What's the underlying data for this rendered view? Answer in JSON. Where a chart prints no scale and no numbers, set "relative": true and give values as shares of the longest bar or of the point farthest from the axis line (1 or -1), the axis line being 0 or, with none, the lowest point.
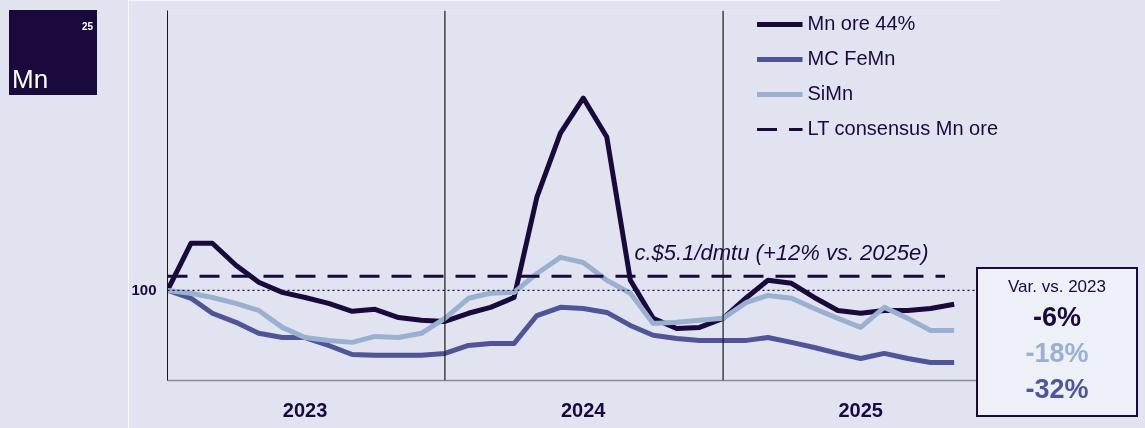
{
  "chart_data": {
    "type": "line",
    "relative": true,
    "x": [
      "2023-01",
      "2023-02",
      "2023-03",
      "2023-04",
      "2023-05",
      "2023-06",
      "2023-07",
      "2023-08",
      "2023-09",
      "2023-10",
      "2023-11",
      "2023-12",
      "2024-01",
      "2024-02",
      "2024-03",
      "2024-04",
      "2024-05",
      "2024-06",
      "2024-07",
      "2024-08",
      "2024-09",
      "2024-10",
      "2024-11",
      "2024-12",
      "2025-01",
      "2025-02",
      "2025-03",
      "2025-04",
      "2025-05",
      "2025-06",
      "2025-07",
      "2025-08",
      "2025-09",
      "2025-10",
      "2025-11"
    ],
    "xlim": [
      "2023-01",
      "2026-01"
    ],
    "xticks": [
      {
        "value": "2023-07",
        "label": "2023"
      },
      {
        "value": "2024-07",
        "label": "2024"
      },
      {
        "value": "2025-07",
        "label": "2025"
      }
    ],
    "series": [
      {
        "name": "Mn ore 44%",
        "color": "#1a0a3c",
        "values": [
          0.319,
          0.486,
          0.486,
          0.408,
          0.348,
          0.312,
          0.294,
          0.273,
          0.245,
          0.252,
          0.223,
          0.213,
          0.209,
          0.238,
          0.259,
          0.294,
          0.649,
          0.876,
          1.0,
          0.862,
          0.355,
          0.22,
          0.184,
          0.188,
          0.22,
          0.294,
          0.355,
          0.344,
          0.294,
          0.248,
          0.238,
          0.248,
          0.248,
          0.255,
          0.27
        ]
      },
      {
        "name": "MC FeMn",
        "color": "#4f5597",
        "values": [
          0.319,
          0.291,
          0.238,
          0.206,
          0.167,
          0.152,
          0.152,
          0.124,
          0.092,
          0.089,
          0.089,
          0.089,
          0.096,
          0.124,
          0.131,
          0.131,
          0.23,
          0.259,
          0.255,
          0.241,
          0.195,
          0.16,
          0.149,
          0.142,
          0.142,
          0.142,
          0.152,
          0.135,
          0.117,
          0.096,
          0.078,
          0.096,
          0.078,
          0.064,
          0.064
        ]
      },
      {
        "name": "SiMn",
        "color": "#9bb0d0",
        "values": [
          0.319,
          0.309,
          0.294,
          0.273,
          0.248,
          0.188,
          0.152,
          0.142,
          0.135,
          0.156,
          0.152,
          0.167,
          0.22,
          0.291,
          0.309,
          0.312,
          0.379,
          0.436,
          0.418,
          0.355,
          0.309,
          0.202,
          0.206,
          0.213,
          0.22,
          0.277,
          0.301,
          0.291,
          0.255,
          0.22,
          0.188,
          0.259,
          0.22,
          0.177,
          0.177
        ]
      },
      {
        "name": "LT consensus Mn ore",
        "color": "#1a0a3c",
        "line_style": "dashed",
        "x": [
          "2023-01",
          "2025-10-20"
        ],
        "values": [
          0.369,
          0.369
        ]
      }
    ],
    "ref_lines": [
      {
        "axis": "y",
        "value": 0.319,
        "line_style": "dotted",
        "color": "#1a0a3c"
      },
      {
        "axis": "x",
        "value": "2024-01",
        "color": "#1a1a1a"
      },
      {
        "axis": "x",
        "value": "2025-01",
        "color": "#1a1a1a"
      }
    ],
    "annotations": [
      "25",
      "Mn",
      "c.$5.1/dmtu (+12% vs. 2025e)",
      "Var. vs. 2023",
      "-6%",
      "-18%",
      "-32%",
      "100"
    ],
    "legend": "top right",
    "grid": false,
    "marker": "none",
    "line_style": "solid"
  }
}
